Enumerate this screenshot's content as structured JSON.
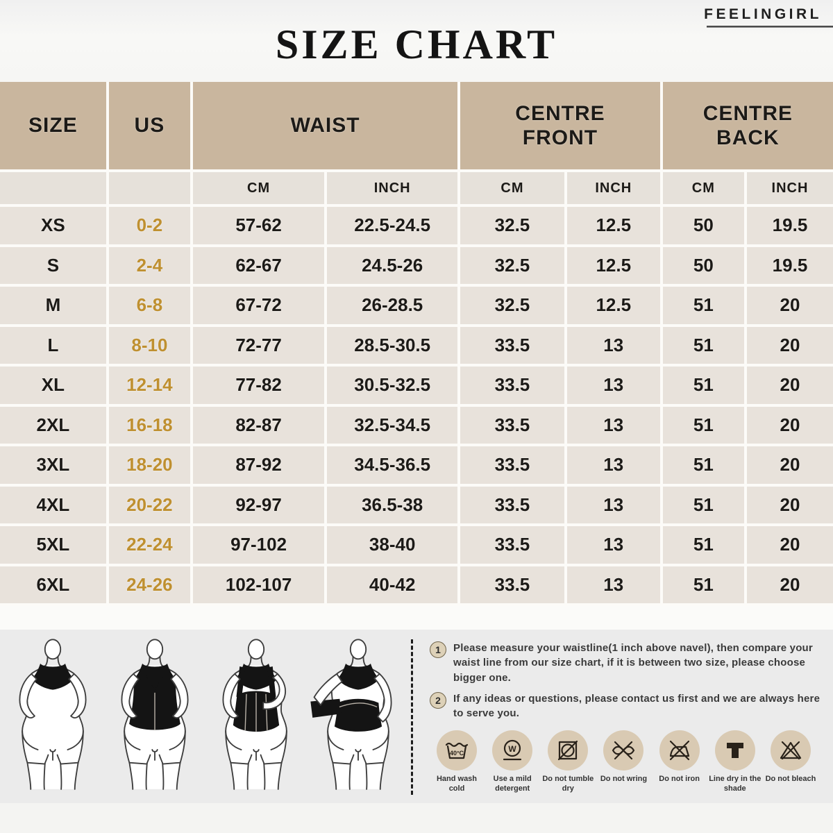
{
  "brand": "FEELINGIRL",
  "title": "SIZE CHART",
  "chart_data": {
    "type": "table",
    "title": "SIZE CHART",
    "columns": [
      "SIZE",
      "US",
      "WAIST CM",
      "WAIST INCH",
      "CENTRE FRONT CM",
      "CENTRE FRONT INCH",
      "CENTRE BACK CM",
      "CENTRE BACK INCH"
    ],
    "rows": [
      [
        "XS",
        "0-2",
        "57-62",
        "22.5-24.5",
        "32.5",
        "12.5",
        "50",
        "19.5"
      ],
      [
        "S",
        "2-4",
        "62-67",
        "24.5-26",
        "32.5",
        "12.5",
        "50",
        "19.5"
      ],
      [
        "M",
        "6-8",
        "67-72",
        "26-28.5",
        "32.5",
        "12.5",
        "51",
        "20"
      ],
      [
        "L",
        "8-10",
        "72-77",
        "28.5-30.5",
        "33.5",
        "13",
        "51",
        "20"
      ],
      [
        "XL",
        "12-14",
        "77-82",
        "30.5-32.5",
        "33.5",
        "13",
        "51",
        "20"
      ],
      [
        "2XL",
        "16-18",
        "82-87",
        "32.5-34.5",
        "33.5",
        "13",
        "51",
        "20"
      ],
      [
        "3XL",
        "18-20",
        "87-92",
        "34.5-36.5",
        "33.5",
        "13",
        "51",
        "20"
      ],
      [
        "4XL",
        "20-22",
        "92-97",
        "36.5-38",
        "33.5",
        "13",
        "51",
        "20"
      ],
      [
        "5XL",
        "22-24",
        "97-102",
        "38-40",
        "33.5",
        "13",
        "51",
        "20"
      ],
      [
        "6XL",
        "24-26",
        "102-107",
        "40-42",
        "33.5",
        "13",
        "51",
        "20"
      ]
    ]
  },
  "table": {
    "headers": {
      "size": "SIZE",
      "us": "US",
      "waist": "WAIST",
      "centre_front": "CENTRE\nFRONT",
      "centre_back": "CENTRE\nBACK"
    },
    "subheaders": [
      "CM",
      "INCH",
      "CM",
      "INCH",
      "CM",
      "INCH"
    ]
  },
  "notes": [
    {
      "num": "1",
      "text": "Please measure your waistline(1 inch above navel), then compare your waist line from our size chart, if it is between two size, please choose bigger one."
    },
    {
      "num": "2",
      "text": "If any ideas or questions, please contact us first and we are always here to serve you."
    }
  ],
  "care": [
    {
      "icon": "hand-wash-cold-icon",
      "label": "Hand wash cold",
      "glyph": "40°C"
    },
    {
      "icon": "mild-detergent-icon",
      "label": "Use a mild detergent",
      "glyph": "W"
    },
    {
      "icon": "do-not-tumble-dry-icon",
      "label": "Do not tumble dry"
    },
    {
      "icon": "do-not-wring-icon",
      "label": "Do not wring"
    },
    {
      "icon": "do-not-iron-icon",
      "label": "Do not iron"
    },
    {
      "icon": "line-dry-shade-icon",
      "label": "Line dry in the shade"
    },
    {
      "icon": "do-not-bleach-icon",
      "label": "Do not bleach"
    }
  ],
  "figures": [
    "wearing-step-1",
    "wearing-step-2",
    "wearing-step-3",
    "wearing-step-4"
  ],
  "colors": {
    "header_bg": "#c9b69e",
    "subheader_bg": "#e6e1da",
    "row_bg": "#e8e2db",
    "us_gold": "#bf9030",
    "care_circle_bg": "#d9cab3",
    "bottom_bg": "#ebebeb"
  }
}
